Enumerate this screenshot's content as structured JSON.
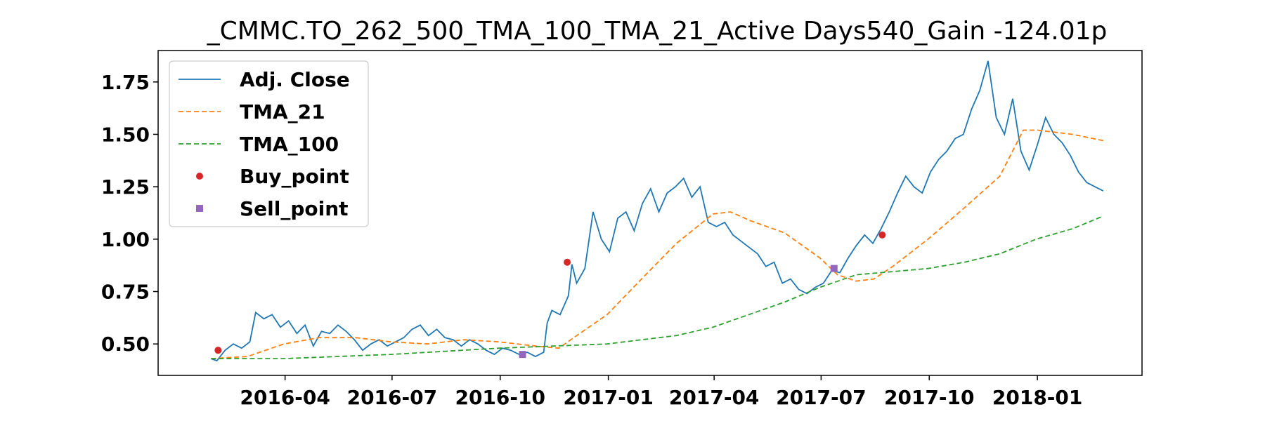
{
  "chart_data": {
    "type": "line",
    "title": "_CMMC.TO_262_500_TMA_100_TMA_21_Active Days540_Gain -124.01p",
    "xlabel": "",
    "ylabel": "",
    "xlim": [
      "2015-12-15",
      "2018-03-31"
    ],
    "ylim": [
      0.35,
      1.9
    ],
    "x_ticks": [
      "2016-04",
      "2016-07",
      "2016-10",
      "2017-01",
      "2017-04",
      "2017-07",
      "2017-10",
      "2018-01"
    ],
    "y_ticks": [
      0.5,
      0.75,
      1.0,
      1.25,
      1.5,
      1.75
    ],
    "y_tick_labels": [
      "0.50",
      "0.75",
      "1.00",
      "1.25",
      "1.50",
      "1.75"
    ],
    "grid": false,
    "legend_position": "top-left",
    "series": [
      {
        "name": "Adj. Close",
        "style": "solid",
        "color": "#1f77b4",
        "points": [
          [
            "2016-01-29",
            0.43
          ],
          [
            "2016-02-03",
            0.42
          ],
          [
            "2016-02-10",
            0.47
          ],
          [
            "2016-02-17",
            0.5
          ],
          [
            "2016-02-24",
            0.48
          ],
          [
            "2016-03-02",
            0.51
          ],
          [
            "2016-03-07",
            0.65
          ],
          [
            "2016-03-14",
            0.62
          ],
          [
            "2016-03-21",
            0.64
          ],
          [
            "2016-03-28",
            0.58
          ],
          [
            "2016-04-04",
            0.61
          ],
          [
            "2016-04-11",
            0.55
          ],
          [
            "2016-04-18",
            0.59
          ],
          [
            "2016-04-25",
            0.49
          ],
          [
            "2016-05-02",
            0.56
          ],
          [
            "2016-05-09",
            0.55
          ],
          [
            "2016-05-16",
            0.59
          ],
          [
            "2016-05-23",
            0.56
          ],
          [
            "2016-05-30",
            0.52
          ],
          [
            "2016-06-06",
            0.47
          ],
          [
            "2016-06-13",
            0.5
          ],
          [
            "2016-06-20",
            0.52
          ],
          [
            "2016-06-27",
            0.49
          ],
          [
            "2016-07-04",
            0.51
          ],
          [
            "2016-07-11",
            0.53
          ],
          [
            "2016-07-18",
            0.57
          ],
          [
            "2016-07-25",
            0.59
          ],
          [
            "2016-08-01",
            0.54
          ],
          [
            "2016-08-08",
            0.57
          ],
          [
            "2016-08-15",
            0.53
          ],
          [
            "2016-08-22",
            0.52
          ],
          [
            "2016-08-29",
            0.49
          ],
          [
            "2016-09-05",
            0.52
          ],
          [
            "2016-09-12",
            0.5
          ],
          [
            "2016-09-19",
            0.47
          ],
          [
            "2016-09-26",
            0.45
          ],
          [
            "2016-10-03",
            0.48
          ],
          [
            "2016-10-10",
            0.47
          ],
          [
            "2016-10-17",
            0.45
          ],
          [
            "2016-10-24",
            0.46
          ],
          [
            "2016-10-31",
            0.44
          ],
          [
            "2016-11-07",
            0.46
          ],
          [
            "2016-11-10",
            0.6
          ],
          [
            "2016-11-14",
            0.66
          ],
          [
            "2016-11-21",
            0.64
          ],
          [
            "2016-11-28",
            0.73
          ],
          [
            "2016-12-01",
            0.88
          ],
          [
            "2016-12-05",
            0.79
          ],
          [
            "2016-12-12",
            0.86
          ],
          [
            "2016-12-19",
            1.13
          ],
          [
            "2016-12-26",
            1.0
          ],
          [
            "2017-01-02",
            0.94
          ],
          [
            "2017-01-09",
            1.1
          ],
          [
            "2017-01-16",
            1.13
          ],
          [
            "2017-01-23",
            1.04
          ],
          [
            "2017-01-30",
            1.17
          ],
          [
            "2017-02-06",
            1.24
          ],
          [
            "2017-02-13",
            1.13
          ],
          [
            "2017-02-20",
            1.22
          ],
          [
            "2017-02-27",
            1.25
          ],
          [
            "2017-03-06",
            1.29
          ],
          [
            "2017-03-13",
            1.2
          ],
          [
            "2017-03-20",
            1.25
          ],
          [
            "2017-03-27",
            1.08
          ],
          [
            "2017-04-03",
            1.06
          ],
          [
            "2017-04-10",
            1.08
          ],
          [
            "2017-04-17",
            1.02
          ],
          [
            "2017-04-24",
            0.99
          ],
          [
            "2017-05-01",
            0.96
          ],
          [
            "2017-05-08",
            0.93
          ],
          [
            "2017-05-15",
            0.87
          ],
          [
            "2017-05-22",
            0.89
          ],
          [
            "2017-05-29",
            0.79
          ],
          [
            "2017-06-05",
            0.81
          ],
          [
            "2017-06-12",
            0.76
          ],
          [
            "2017-06-19",
            0.74
          ],
          [
            "2017-06-26",
            0.77
          ],
          [
            "2017-07-03",
            0.79
          ],
          [
            "2017-07-10",
            0.85
          ],
          [
            "2017-07-17",
            0.84
          ],
          [
            "2017-07-24",
            0.91
          ],
          [
            "2017-07-31",
            0.97
          ],
          [
            "2017-08-07",
            1.02
          ],
          [
            "2017-08-14",
            0.98
          ],
          [
            "2017-08-21",
            1.05
          ],
          [
            "2017-08-28",
            1.13
          ],
          [
            "2017-09-04",
            1.22
          ],
          [
            "2017-09-11",
            1.3
          ],
          [
            "2017-09-18",
            1.25
          ],
          [
            "2017-09-25",
            1.22
          ],
          [
            "2017-10-02",
            1.32
          ],
          [
            "2017-10-09",
            1.38
          ],
          [
            "2017-10-16",
            1.42
          ],
          [
            "2017-10-23",
            1.48
          ],
          [
            "2017-10-30",
            1.5
          ],
          [
            "2017-11-06",
            1.62
          ],
          [
            "2017-11-13",
            1.71
          ],
          [
            "2017-11-20",
            1.85
          ],
          [
            "2017-11-27",
            1.58
          ],
          [
            "2017-12-04",
            1.5
          ],
          [
            "2017-12-11",
            1.67
          ],
          [
            "2017-12-18",
            1.42
          ],
          [
            "2017-12-25",
            1.33
          ],
          [
            "2018-01-01",
            1.45
          ],
          [
            "2018-01-08",
            1.58
          ],
          [
            "2018-01-15",
            1.5
          ],
          [
            "2018-01-22",
            1.46
          ],
          [
            "2018-01-29",
            1.4
          ],
          [
            "2018-02-05",
            1.32
          ],
          [
            "2018-02-12",
            1.27
          ],
          [
            "2018-02-19",
            1.25
          ],
          [
            "2018-02-26",
            1.23
          ]
        ]
      },
      {
        "name": "TMA_21",
        "style": "dashed",
        "color": "#ff7f0e",
        "points": [
          [
            "2016-01-29",
            0.43
          ],
          [
            "2016-02-29",
            0.44
          ],
          [
            "2016-03-31",
            0.5
          ],
          [
            "2016-04-30",
            0.53
          ],
          [
            "2016-05-31",
            0.53
          ],
          [
            "2016-06-30",
            0.51
          ],
          [
            "2016-07-31",
            0.5
          ],
          [
            "2016-08-31",
            0.52
          ],
          [
            "2016-09-30",
            0.51
          ],
          [
            "2016-10-31",
            0.49
          ],
          [
            "2016-11-20",
            0.48
          ],
          [
            "2016-11-30",
            0.52
          ],
          [
            "2016-12-31",
            0.64
          ],
          [
            "2017-01-31",
            0.82
          ],
          [
            "2017-02-28",
            0.98
          ],
          [
            "2017-03-31",
            1.12
          ],
          [
            "2017-04-15",
            1.13
          ],
          [
            "2017-05-01",
            1.09
          ],
          [
            "2017-05-31",
            1.03
          ],
          [
            "2017-06-30",
            0.91
          ],
          [
            "2017-07-15",
            0.83
          ],
          [
            "2017-07-31",
            0.8
          ],
          [
            "2017-08-15",
            0.81
          ],
          [
            "2017-08-31",
            0.87
          ],
          [
            "2017-09-30",
            1.0
          ],
          [
            "2017-10-31",
            1.15
          ],
          [
            "2017-11-30",
            1.3
          ],
          [
            "2017-12-20",
            1.52
          ],
          [
            "2018-01-01",
            1.52
          ],
          [
            "2018-01-31",
            1.5
          ],
          [
            "2018-02-26",
            1.47
          ]
        ]
      },
      {
        "name": "TMA_100",
        "style": "dashed",
        "color": "#2ca02c",
        "points": [
          [
            "2016-01-29",
            0.43
          ],
          [
            "2016-03-31",
            0.43
          ],
          [
            "2016-06-30",
            0.45
          ],
          [
            "2016-09-30",
            0.48
          ],
          [
            "2016-12-31",
            0.5
          ],
          [
            "2017-02-28",
            0.54
          ],
          [
            "2017-03-31",
            0.58
          ],
          [
            "2017-05-31",
            0.7
          ],
          [
            "2017-06-30",
            0.77
          ],
          [
            "2017-07-31",
            0.83
          ],
          [
            "2017-09-30",
            0.86
          ],
          [
            "2017-10-31",
            0.89
          ],
          [
            "2017-11-30",
            0.93
          ],
          [
            "2017-12-31",
            1.0
          ],
          [
            "2018-01-31",
            1.05
          ],
          [
            "2018-02-26",
            1.11
          ]
        ]
      }
    ],
    "markers": [
      {
        "name": "Buy_point",
        "shape": "circle",
        "color": "#d62728",
        "points": [
          [
            "2016-02-04",
            0.47
          ],
          [
            "2016-11-27",
            0.89
          ],
          [
            "2017-08-22",
            1.02
          ]
        ]
      },
      {
        "name": "Sell_point",
        "shape": "square",
        "color": "#9467bd",
        "points": [
          [
            "2016-10-20",
            0.45
          ],
          [
            "2017-07-12",
            0.86
          ]
        ]
      }
    ]
  }
}
